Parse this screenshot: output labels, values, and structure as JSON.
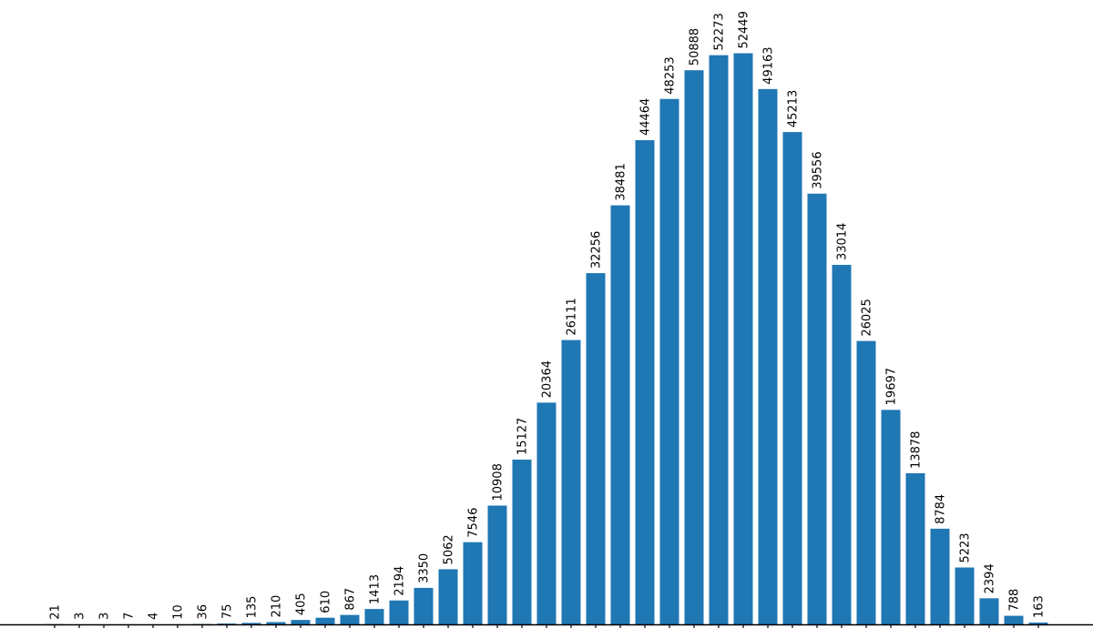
{
  "chart_data": {
    "type": "bar",
    "title": "",
    "xlabel": "",
    "ylabel": "",
    "ylim": [
      0,
      55000
    ],
    "grid": false,
    "bar_color": "#1f77b4",
    "data_labels": true,
    "values": [
      21,
      3,
      3,
      7,
      4,
      10,
      36,
      75,
      135,
      210,
      405,
      610,
      867,
      1413,
      2194,
      3350,
      5062,
      7546,
      10908,
      15127,
      20364,
      26111,
      32256,
      38481,
      44464,
      48253,
      50888,
      52273,
      52449,
      49163,
      45213,
      39556,
      33014,
      26025,
      19697,
      13878,
      8784,
      5223,
      2394,
      788,
      163
    ]
  }
}
